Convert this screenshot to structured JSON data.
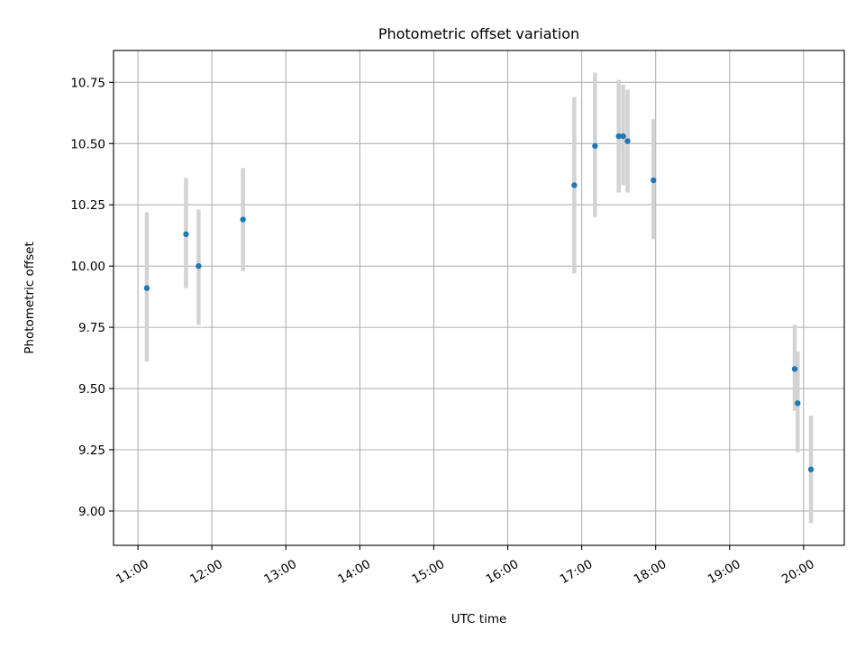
{
  "chart_data": {
    "type": "scatter",
    "title": "Photometric offset variation",
    "xlabel": "UTC time",
    "ylabel": "Photometric offset",
    "x_unit": "UTC hour of day",
    "xlim": [
      10.67,
      20.55
    ],
    "ylim": [
      8.86,
      10.88
    ],
    "x_ticks": [
      {
        "value": 11,
        "label": "11:00"
      },
      {
        "value": 12,
        "label": "12:00"
      },
      {
        "value": 13,
        "label": "13:00"
      },
      {
        "value": 14,
        "label": "14:00"
      },
      {
        "value": 15,
        "label": "15:00"
      },
      {
        "value": 16,
        "label": "16:00"
      },
      {
        "value": 17,
        "label": "17:00"
      },
      {
        "value": 18,
        "label": "18:00"
      },
      {
        "value": 19,
        "label": "19:00"
      },
      {
        "value": 20,
        "label": "20:00"
      }
    ],
    "y_ticks": [
      {
        "value": 9.0,
        "label": "9.00"
      },
      {
        "value": 9.25,
        "label": "9.25"
      },
      {
        "value": 9.5,
        "label": "9.50"
      },
      {
        "value": 9.75,
        "label": "9.75"
      },
      {
        "value": 10.0,
        "label": "10.00"
      },
      {
        "value": 10.25,
        "label": "10.25"
      },
      {
        "value": 10.5,
        "label": "10.50"
      },
      {
        "value": 10.75,
        "label": "10.75"
      }
    ],
    "grid": true,
    "point_color": "#1f77b4",
    "errorbar_color": "#d3d3d3",
    "points": [
      {
        "x": 11.12,
        "y": 9.91,
        "y_low": 9.61,
        "y_high": 10.22
      },
      {
        "x": 11.65,
        "y": 10.13,
        "y_low": 9.91,
        "y_high": 10.36
      },
      {
        "x": 11.82,
        "y": 10.0,
        "y_low": 9.76,
        "y_high": 10.23
      },
      {
        "x": 12.42,
        "y": 10.19,
        "y_low": 9.98,
        "y_high": 10.4
      },
      {
        "x": 16.9,
        "y": 10.33,
        "y_low": 9.97,
        "y_high": 10.69
      },
      {
        "x": 17.18,
        "y": 10.49,
        "y_low": 10.2,
        "y_high": 10.79
      },
      {
        "x": 17.5,
        "y": 10.53,
        "y_low": 10.3,
        "y_high": 10.76
      },
      {
        "x": 17.56,
        "y": 10.53,
        "y_low": 10.33,
        "y_high": 10.74
      },
      {
        "x": 17.62,
        "y": 10.51,
        "y_low": 10.3,
        "y_high": 10.72
      },
      {
        "x": 17.97,
        "y": 10.35,
        "y_low": 10.11,
        "y_high": 10.6
      },
      {
        "x": 19.88,
        "y": 9.58,
        "y_low": 9.41,
        "y_high": 9.76
      },
      {
        "x": 19.92,
        "y": 9.44,
        "y_low": 9.24,
        "y_high": 9.65
      },
      {
        "x": 20.1,
        "y": 9.17,
        "y_low": 8.95,
        "y_high": 9.39
      }
    ]
  }
}
